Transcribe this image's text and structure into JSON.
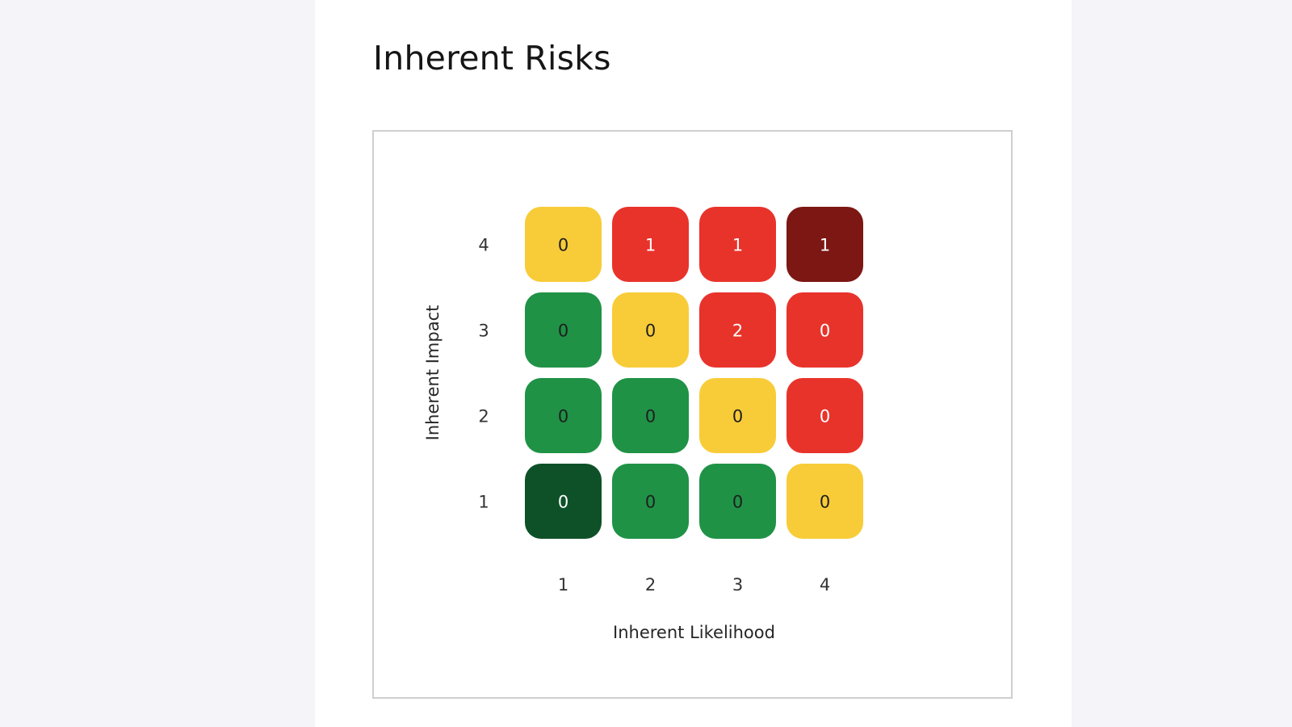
{
  "page": {
    "title": "Inherent Risks"
  },
  "chart_data": {
    "type": "heatmap",
    "title": "",
    "xlabel": "Inherent Likelihood",
    "ylabel": "Inherent Impact",
    "x_categories": [
      "1",
      "2",
      "3",
      "4"
    ],
    "y_categories": [
      "1",
      "2",
      "3",
      "4"
    ],
    "grid": false,
    "legend": "none",
    "cells": [
      {
        "x": "1",
        "y": "4",
        "value": 0,
        "color": "#f8cc38",
        "text_color": "#1f1f1f"
      },
      {
        "x": "2",
        "y": "4",
        "value": 1,
        "color": "#e8332b",
        "text_color": "#ffffff"
      },
      {
        "x": "3",
        "y": "4",
        "value": 1,
        "color": "#e8332b",
        "text_color": "#ffffff"
      },
      {
        "x": "4",
        "y": "4",
        "value": 1,
        "color": "#7c1713",
        "text_color": "#ffffff"
      },
      {
        "x": "1",
        "y": "3",
        "value": 0,
        "color": "#1f9246",
        "text_color": "#1f1f1f"
      },
      {
        "x": "2",
        "y": "3",
        "value": 0,
        "color": "#f8cc38",
        "text_color": "#1f1f1f"
      },
      {
        "x": "3",
        "y": "3",
        "value": 2,
        "color": "#e8332b",
        "text_color": "#ffffff"
      },
      {
        "x": "4",
        "y": "3",
        "value": 0,
        "color": "#e8332b",
        "text_color": "#ffffff"
      },
      {
        "x": "1",
        "y": "2",
        "value": 0,
        "color": "#1f9246",
        "text_color": "#1f1f1f"
      },
      {
        "x": "2",
        "y": "2",
        "value": 0,
        "color": "#1f9246",
        "text_color": "#1f1f1f"
      },
      {
        "x": "3",
        "y": "2",
        "value": 0,
        "color": "#f8cc38",
        "text_color": "#1f1f1f"
      },
      {
        "x": "4",
        "y": "2",
        "value": 0,
        "color": "#e8332b",
        "text_color": "#ffffff"
      },
      {
        "x": "1",
        "y": "1",
        "value": 0,
        "color": "#0e5128",
        "text_color": "#ffffff"
      },
      {
        "x": "2",
        "y": "1",
        "value": 0,
        "color": "#1f9246",
        "text_color": "#1f1f1f"
      },
      {
        "x": "3",
        "y": "1",
        "value": 0,
        "color": "#1f9246",
        "text_color": "#1f1f1f"
      },
      {
        "x": "4",
        "y": "1",
        "value": 0,
        "color": "#f8cc38",
        "text_color": "#1f1f1f"
      }
    ]
  }
}
